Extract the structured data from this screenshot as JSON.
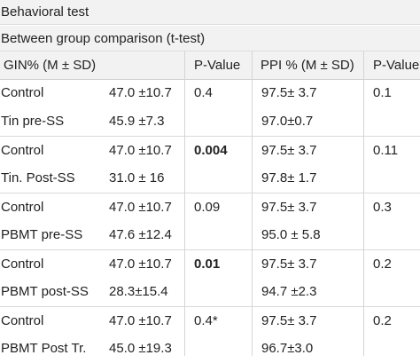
{
  "title": "Behavioral test",
  "subtitle": "Between group comparison (t-test)",
  "headers": {
    "gin": "GIN% (M ± SD)",
    "p_value_1": "P-Value",
    "ppi": "PPI % (M ± SD)",
    "p_value_2": "P-Value"
  },
  "groups": [
    {
      "rows": [
        {
          "name": "Control",
          "gin": "47.0 ±10.7",
          "ppi": "97.5± 3.7"
        },
        {
          "name": "Tin pre-SS",
          "gin": "45.9 ±7.3",
          "ppi": "97.0±0.7"
        }
      ],
      "p1": "0.4",
      "p1_bold": false,
      "p2": "0.1"
    },
    {
      "rows": [
        {
          "name": "Control",
          "gin": "47.0 ±10.7",
          "ppi": "97.5± 3.7"
        },
        {
          "name": "Tin. Post-SS",
          "gin": "31.0 ± 16",
          "ppi": "97.8± 1.7"
        }
      ],
      "p1": "0.004",
      "p1_bold": true,
      "p2": "0.11"
    },
    {
      "rows": [
        {
          "name": "Control",
          "gin": "47.0 ±10.7",
          "ppi": "97.5± 3.7"
        },
        {
          "name": "PBMT pre-SS",
          "gin": "47.6 ±12.4",
          "ppi": "95.0 ± 5.8"
        }
      ],
      "p1": "0.09",
      "p1_bold": false,
      "p2": "0.3"
    },
    {
      "rows": [
        {
          "name": "Control",
          "gin": "47.0 ±10.7",
          "ppi": "97.5± 3.7"
        },
        {
          "name": "PBMT post-SS",
          "gin": "28.3±15.4",
          "ppi": "94.7 ±2.3"
        }
      ],
      "p1": "0.01",
      "p1_bold": true,
      "p2": "0.2"
    },
    {
      "rows": [
        {
          "name": "Control",
          "gin": "47.0 ±10.7",
          "ppi": "97.5± 3.7"
        },
        {
          "name": "PBMT Post Tr.",
          "gin": "45.0 ±19.3",
          "ppi": "96.7±3.0"
        }
      ],
      "p1": "0.4*",
      "p1_bold": false,
      "p2": "0.2"
    }
  ]
}
